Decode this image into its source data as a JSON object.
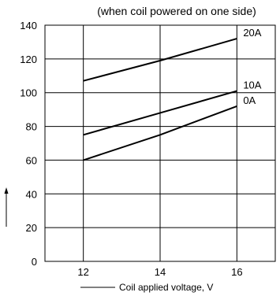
{
  "chart_data": {
    "type": "line",
    "title": "(when coil powered on one side)",
    "xlabel": "Coil applied voltage, V",
    "ylabel": "",
    "xlim": [
      11,
      17
    ],
    "ylim": [
      0,
      140
    ],
    "x_ticks": [
      12,
      14,
      16
    ],
    "y_ticks": [
      0,
      20,
      40,
      60,
      80,
      100,
      120,
      140
    ],
    "grid": true,
    "series": [
      {
        "name": "20A",
        "x": [
          12,
          14,
          16
        ],
        "values": [
          107,
          119,
          132
        ]
      },
      {
        "name": "10A",
        "x": [
          12,
          14,
          16
        ],
        "values": [
          75,
          88,
          101
        ]
      },
      {
        "name": "0A",
        "x": [
          12,
          14,
          16
        ],
        "values": [
          60,
          75,
          92
        ]
      }
    ],
    "colors": {
      "line": "#000000",
      "grid": "#000000"
    }
  }
}
